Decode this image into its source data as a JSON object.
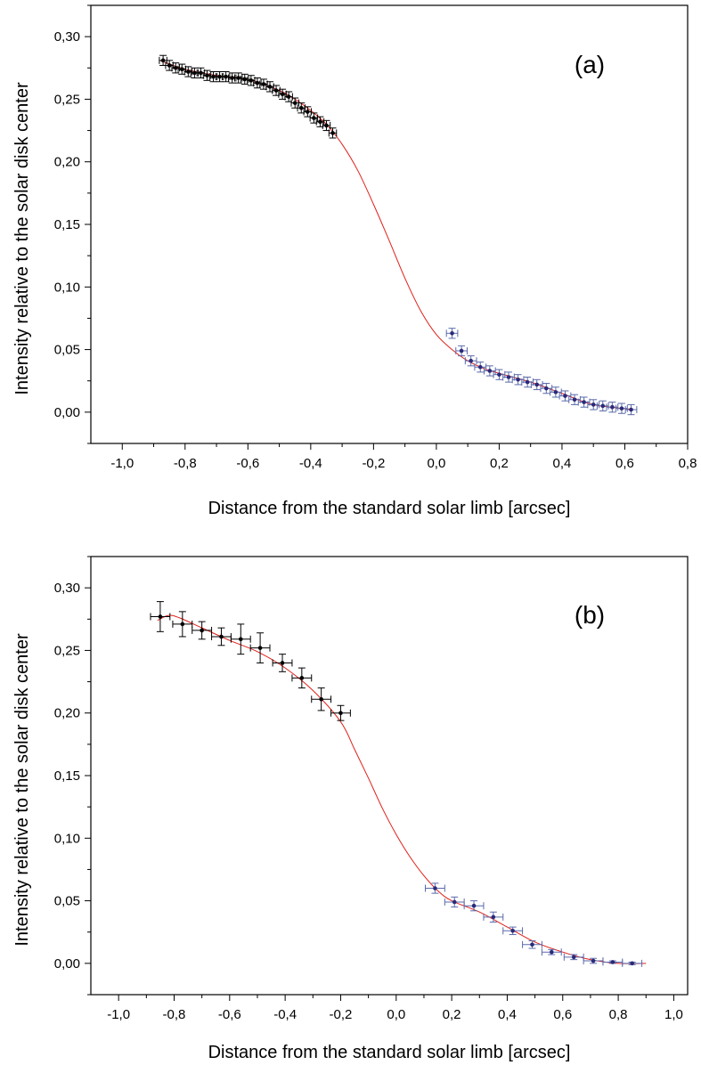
{
  "chart_data": [
    {
      "type": "scatter",
      "panel_label": "(a)",
      "xlabel": "Distance from the standard solar limb [arcsec]",
      "ylabel": "Intensity relative to the solar disk center",
      "xlim": [
        -1.1,
        0.8
      ],
      "ylim": [
        -0.025,
        0.325
      ],
      "x_ticks": [
        -1.0,
        -0.8,
        -0.6,
        -0.4,
        -0.2,
        0.0,
        0.2,
        0.4,
        0.6,
        0.8
      ],
      "x_tick_labels": [
        "-1,0",
        "-0,8",
        "-0,6",
        "-0,4",
        "-0,2",
        "0,0",
        "0,2",
        "0,4",
        "0,6",
        "0,8"
      ],
      "y_ticks": [
        0.0,
        0.05,
        0.1,
        0.15,
        0.2,
        0.25,
        0.3
      ],
      "y_tick_labels": [
        "0,00",
        "0,05",
        "0,10",
        "0,15",
        "0,20",
        "0,25",
        "0,30"
      ],
      "grid": false,
      "colors": {
        "points_left": "#000000",
        "points_right": "#2a2a7a",
        "errorbar_right": "#5a6aaa",
        "fit": "#e0201a"
      },
      "series": [
        {
          "x": [
            -0.87,
            -0.85,
            -0.83,
            -0.81,
            -0.79,
            -0.77,
            -0.75,
            -0.73,
            -0.71,
            -0.69,
            -0.67,
            -0.65,
            -0.63,
            -0.61,
            -0.59,
            -0.57,
            -0.55,
            -0.53,
            -0.51,
            -0.49,
            -0.47,
            -0.45,
            -0.43,
            -0.41,
            -0.39,
            -0.37,
            -0.35,
            -0.33
          ],
          "y": [
            0.281,
            0.277,
            0.275,
            0.274,
            0.272,
            0.271,
            0.271,
            0.269,
            0.268,
            0.268,
            0.268,
            0.267,
            0.267,
            0.266,
            0.265,
            0.263,
            0.262,
            0.26,
            0.257,
            0.254,
            0.252,
            0.247,
            0.243,
            0.24,
            0.235,
            0.232,
            0.229,
            0.223
          ],
          "xerr": 0.012,
          "yerr": 0.004,
          "color": "#000000"
        },
        {
          "x": [
            0.05,
            0.08,
            0.11,
            0.14,
            0.17,
            0.2,
            0.23,
            0.26,
            0.29,
            0.32,
            0.35,
            0.38,
            0.41,
            0.44,
            0.47,
            0.5,
            0.53,
            0.56,
            0.59,
            0.62
          ],
          "y": [
            0.063,
            0.049,
            0.041,
            0.036,
            0.033,
            0.03,
            0.028,
            0.026,
            0.024,
            0.022,
            0.019,
            0.016,
            0.013,
            0.01,
            0.008,
            0.006,
            0.005,
            0.004,
            0.003,
            0.002
          ],
          "xerr": 0.018,
          "yerr": 0.004,
          "color": "#2a2a7a"
        }
      ],
      "fit_curve": {
        "x": [
          -0.88,
          -0.8,
          -0.7,
          -0.6,
          -0.5,
          -0.45,
          -0.4,
          -0.35,
          -0.3,
          -0.25,
          -0.2,
          -0.15,
          -0.1,
          -0.05,
          0.0,
          0.05,
          0.1,
          0.15,
          0.2,
          0.3,
          0.4,
          0.5,
          0.63
        ],
        "y": [
          0.281,
          0.274,
          0.269,
          0.266,
          0.257,
          0.25,
          0.241,
          0.23,
          0.214,
          0.193,
          0.166,
          0.137,
          0.107,
          0.081,
          0.062,
          0.05,
          0.041,
          0.035,
          0.031,
          0.024,
          0.015,
          0.006,
          0.002
        ],
        "color": "#e0201a"
      }
    },
    {
      "type": "scatter",
      "panel_label": "(b)",
      "xlabel": "Distance from the standard solar limb [arcsec]",
      "ylabel": "Intensity relative to the solar disk center",
      "xlim": [
        -1.1,
        1.05
      ],
      "ylim": [
        -0.025,
        0.325
      ],
      "x_ticks": [
        -1.0,
        -0.8,
        -0.6,
        -0.4,
        -0.2,
        0.0,
        0.2,
        0.4,
        0.6,
        0.8,
        1.0
      ],
      "x_tick_labels": [
        "-1,0",
        "-0,8",
        "-0,6",
        "-0,4",
        "-0,2",
        "0,0",
        "0,2",
        "0,4",
        "0,6",
        "0,8",
        "1,0"
      ],
      "y_ticks": [
        0.0,
        0.05,
        0.1,
        0.15,
        0.2,
        0.25,
        0.3
      ],
      "y_tick_labels": [
        "0,00",
        "0,05",
        "0,10",
        "0,15",
        "0,20",
        "0,25",
        "0,30"
      ],
      "grid": false,
      "colors": {
        "points_left": "#000000",
        "points_right": "#2a2a7a",
        "errorbar_right": "#5a6aaa",
        "fit": "#e0201a"
      },
      "series": [
        {
          "x": [
            -0.85,
            -0.77,
            -0.7,
            -0.63,
            -0.56,
            -0.49,
            -0.41,
            -0.34,
            -0.27,
            -0.2
          ],
          "y": [
            0.277,
            0.271,
            0.266,
            0.261,
            0.259,
            0.252,
            0.24,
            0.228,
            0.211,
            0.2
          ],
          "xerr": 0.035,
          "yerr": [
            0.012,
            0.01,
            0.007,
            0.007,
            0.012,
            0.012,
            0.007,
            0.008,
            0.009,
            0.006
          ],
          "color": "#000000"
        },
        {
          "x": [
            0.14,
            0.21,
            0.28,
            0.35,
            0.42,
            0.49,
            0.56,
            0.64,
            0.71,
            0.78,
            0.85
          ],
          "y": [
            0.06,
            0.049,
            0.046,
            0.037,
            0.026,
            0.015,
            0.009,
            0.005,
            0.002,
            0.001,
            0.0
          ],
          "xerr": 0.035,
          "yerr": [
            0.004,
            0.004,
            0.004,
            0.004,
            0.003,
            0.003,
            0.002,
            0.002,
            0.002,
            0.001,
            0.001
          ],
          "color": "#2a2a7a"
        }
      ],
      "fit_curve": {
        "x": [
          -0.86,
          -0.82,
          -0.78,
          -0.7,
          -0.6,
          -0.5,
          -0.4,
          -0.3,
          -0.2,
          -0.15,
          -0.1,
          -0.05,
          0.0,
          0.05,
          0.1,
          0.15,
          0.2,
          0.3,
          0.4,
          0.5,
          0.6,
          0.7,
          0.8,
          0.9
        ],
        "y": [
          0.274,
          0.278,
          0.276,
          0.268,
          0.258,
          0.249,
          0.236,
          0.218,
          0.193,
          0.171,
          0.148,
          0.124,
          0.103,
          0.085,
          0.07,
          0.058,
          0.05,
          0.041,
          0.029,
          0.017,
          0.009,
          0.003,
          0.0,
          0.0
        ],
        "color": "#e0201a"
      }
    }
  ]
}
